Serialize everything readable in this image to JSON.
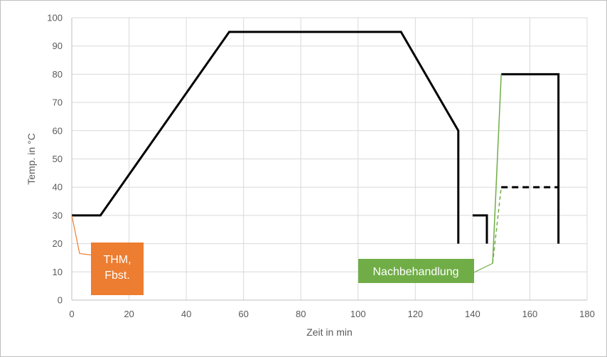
{
  "chart_data": {
    "type": "line",
    "title": "",
    "xlabel": "Zeit in min",
    "ylabel": "Temp. in °C",
    "xlim": [
      0,
      180
    ],
    "ylim": [
      0,
      100
    ],
    "x_ticks": [
      0,
      20,
      40,
      60,
      80,
      100,
      120,
      140,
      160,
      180
    ],
    "y_ticks": [
      0,
      10,
      20,
      30,
      40,
      50,
      60,
      70,
      80,
      90,
      100
    ],
    "grid": true,
    "legend": "none",
    "series": [
      {
        "style": "solid",
        "color": "#000000",
        "width": 3,
        "points": [
          [
            0,
            30
          ],
          [
            10,
            30
          ],
          [
            55,
            95
          ],
          [
            115,
            95
          ],
          [
            135,
            60
          ],
          [
            135,
            20
          ]
        ]
      },
      {
        "style": "solid",
        "color": "#000000",
        "width": 3,
        "points": [
          [
            140,
            30
          ],
          [
            145,
            30
          ],
          [
            145,
            20
          ]
        ]
      },
      {
        "style": "solid",
        "color": "#000000",
        "width": 3,
        "points": [
          [
            150,
            80
          ],
          [
            170,
            80
          ],
          [
            170,
            20
          ]
        ]
      },
      {
        "style": "dashed",
        "color": "#000000",
        "width": 3,
        "points": [
          [
            150,
            40
          ],
          [
            170,
            40
          ]
        ]
      },
      {
        "style": "solid",
        "color": "#70ad47",
        "width": 1.5,
        "points": [
          [
            147,
            13
          ],
          [
            150,
            80
          ]
        ]
      },
      {
        "style": "dashed",
        "color": "#70ad47",
        "width": 1.5,
        "points": [
          [
            147,
            13
          ],
          [
            150,
            40
          ]
        ]
      }
    ],
    "annotations": [
      {
        "lines": [
          "THM,",
          "Fbst."
        ],
        "color": "#ed7d31",
        "target": [
          0,
          30
        ],
        "anchor": [
          6,
          17
        ]
      },
      {
        "lines": [
          "Nachbehandlung"
        ],
        "color": "#70ad47",
        "target": [
          147,
          13
        ],
        "anchor": [
          140,
          13
        ]
      }
    ]
  }
}
